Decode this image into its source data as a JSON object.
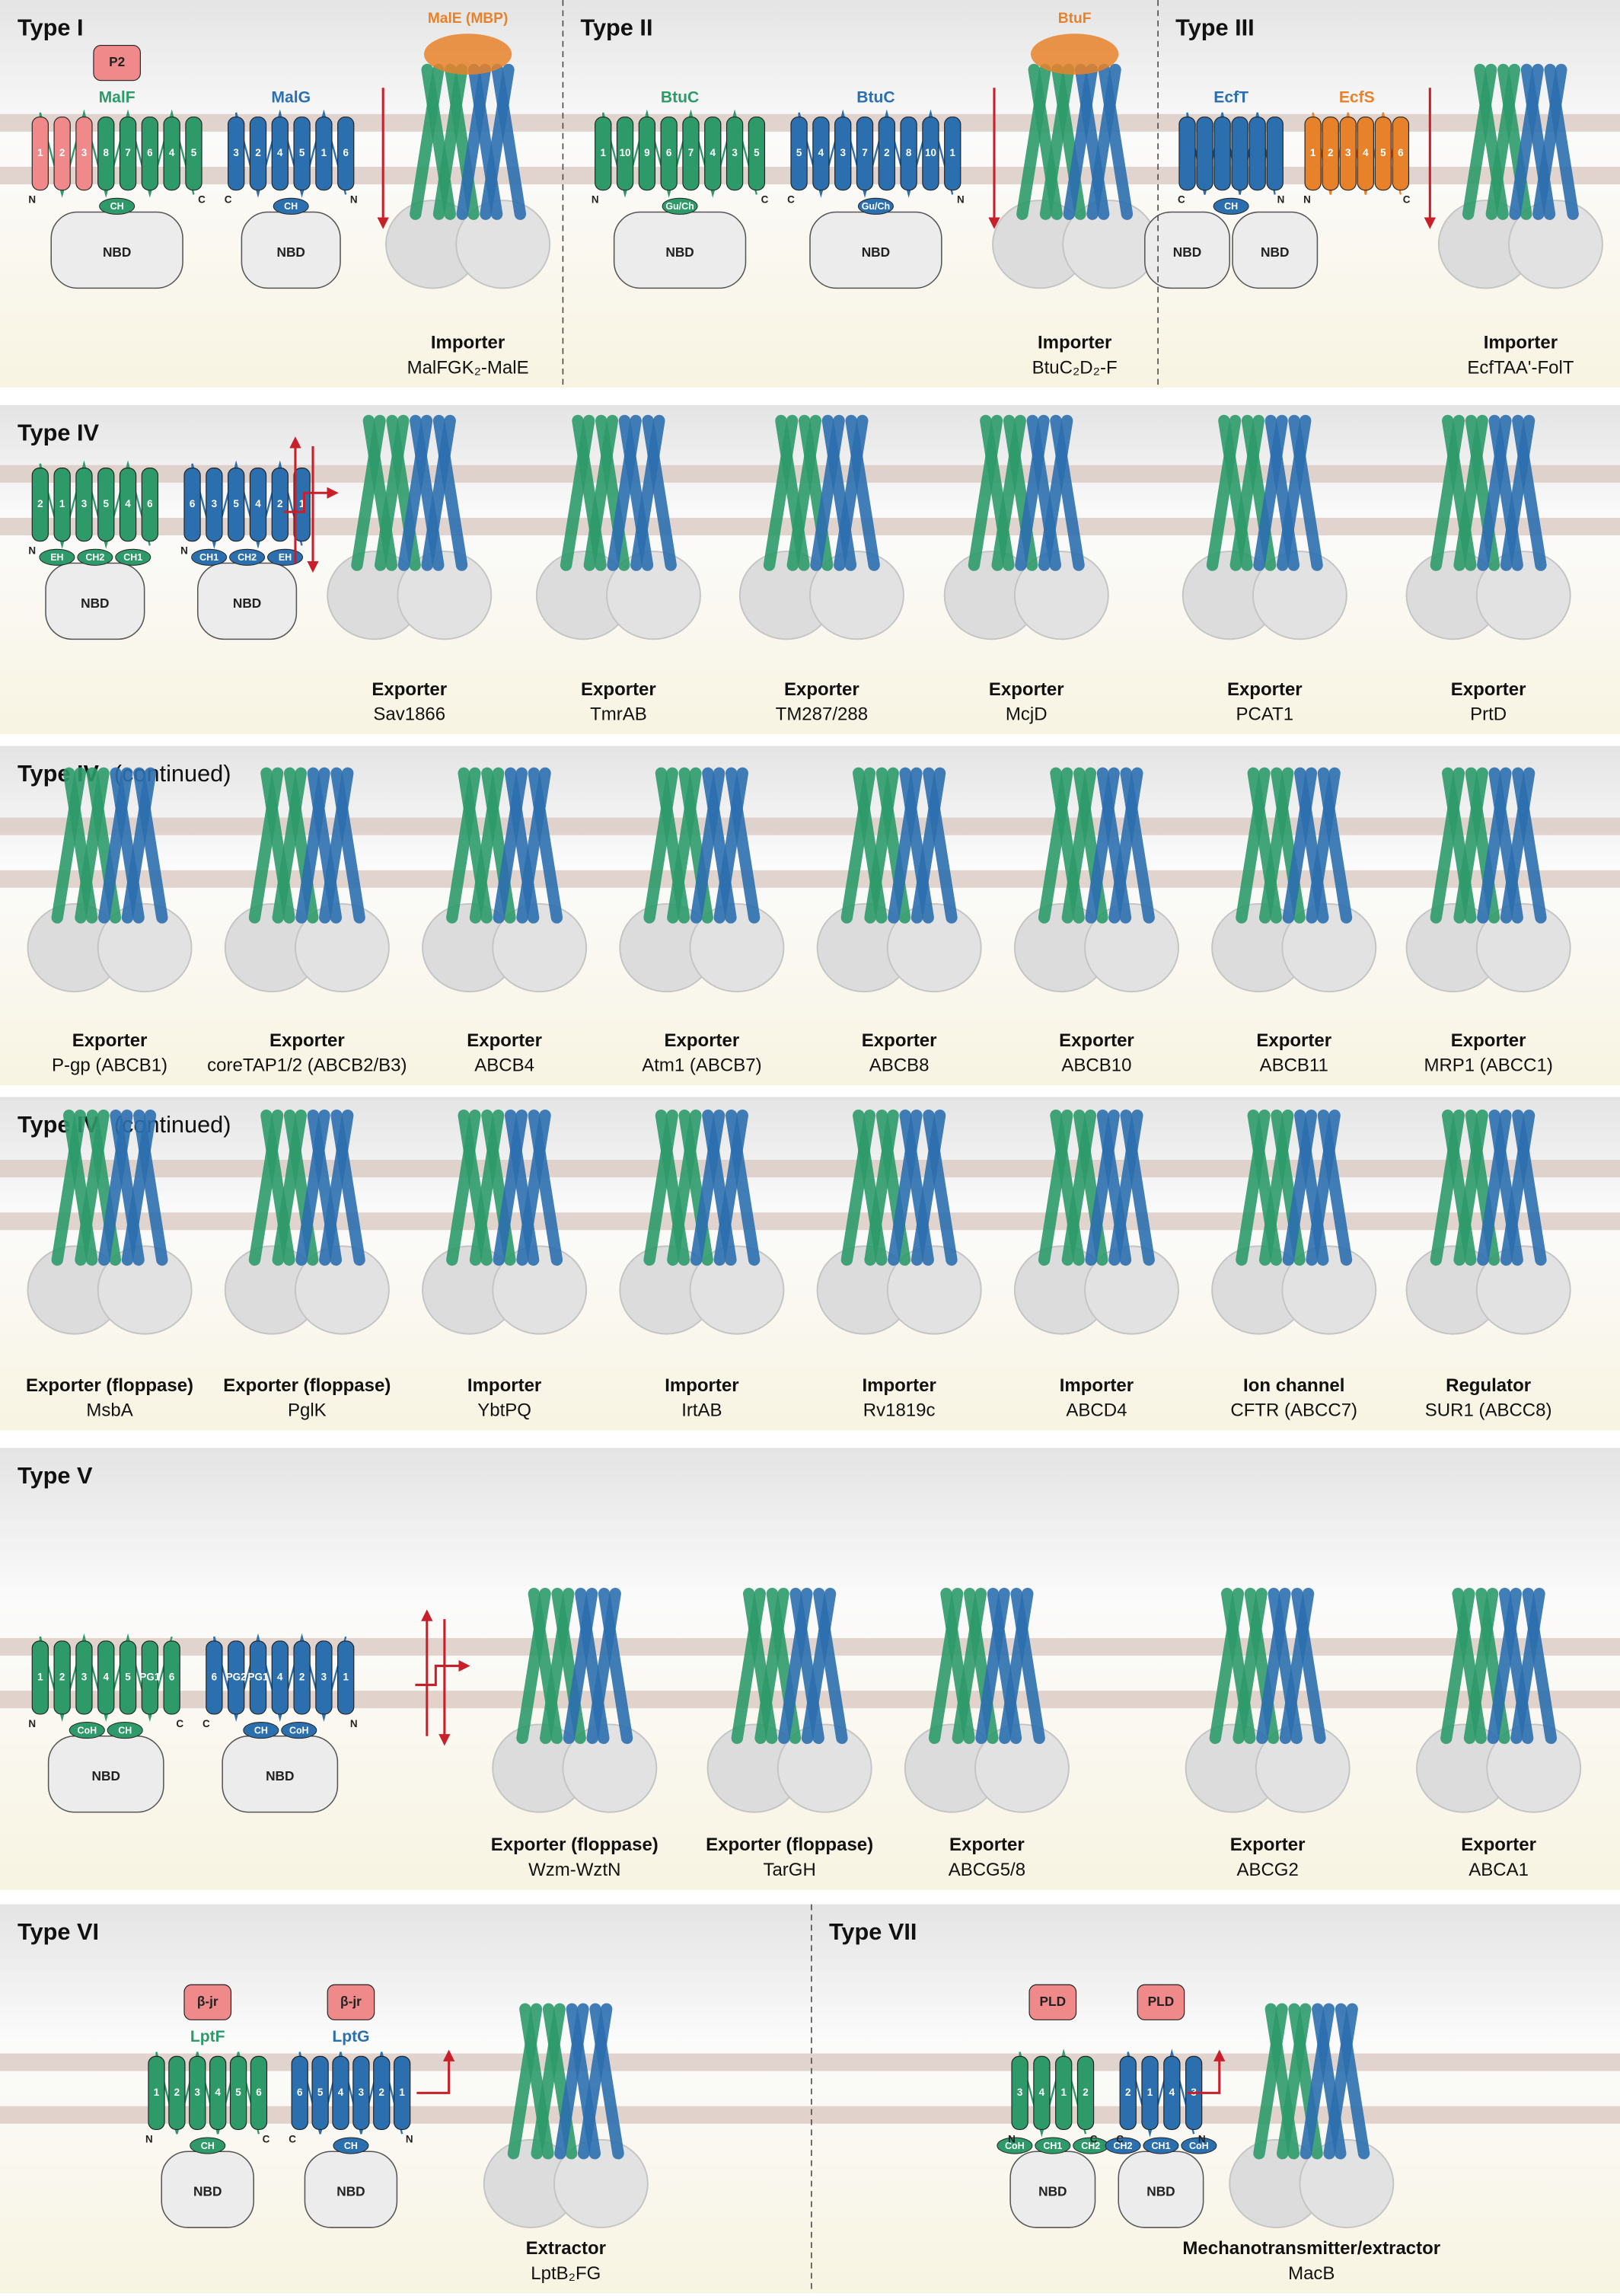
{
  "panels": [
    {
      "title": "Type I",
      "topology": {
        "units": [
          {
            "name": "MalF",
            "color": "#2e9a6a",
            "top": "P2",
            "segments": [
              {
                "color": "#f08a8a",
                "helices": [
                  "1",
                  "2",
                  "3"
                ]
              },
              {
                "color": "#2e9a6a",
                "helices": [
                  "8",
                  "7",
                  "6",
                  "4",
                  "5"
                ]
              }
            ],
            "caps": [
              "CH"
            ],
            "domains": [
              "NBD"
            ],
            "termini": [
              "N",
              "C"
            ]
          },
          {
            "name": "MalG",
            "color": "#2c6fae",
            "segments": [
              {
                "color": "#2c6fae",
                "helices": [
                  "3",
                  "2",
                  "4",
                  "5",
                  "1",
                  "6"
                ]
              }
            ],
            "caps": [
              "CH"
            ],
            "domains": [
              "NBD"
            ],
            "termini": [
              "C",
              "N"
            ]
          }
        ]
      },
      "captions": [
        {
          "role": "Importer",
          "name": "MalFGK₂-MalE",
          "ligand": "MalE (MBP)"
        }
      ]
    },
    {
      "title": "Type II",
      "topology": {
        "units": [
          {
            "name": "BtuC",
            "color": "#2e9a6a",
            "segments": [
              {
                "color": "#2e9a6a",
                "helices": [
                  "1",
                  "10",
                  "9",
                  "6",
                  "7",
                  "4",
                  "3",
                  "5"
                ]
              }
            ],
            "caps": [
              "Gu/Ch"
            ],
            "domains": [
              "NBD"
            ],
            "termini": [
              "N",
              "C"
            ]
          },
          {
            "name": "BtuC",
            "color": "#2c6fae",
            "segments": [
              {
                "color": "#2c6fae",
                "helices": [
                  "5",
                  "4",
                  "3",
                  "7",
                  "2",
                  "8",
                  "10",
                  "1"
                ]
              }
            ],
            "caps": [
              "Gu/Ch"
            ],
            "domains": [
              "NBD"
            ],
            "termini": [
              "C",
              "N"
            ]
          }
        ]
      },
      "captions": [
        {
          "role": "Importer",
          "name": "BtuC₂D₂-F",
          "ligand": "BtuF"
        }
      ]
    },
    {
      "title": "Type III",
      "topology": {
        "units": [
          {
            "name": "EcfT",
            "color": "#2c6fae",
            "caps": [
              "CH"
            ],
            "domains": [
              "NBD",
              "NBD"
            ],
            "termini": [
              "C",
              "N"
            ]
          },
          {
            "name": "EcfS",
            "color": "#e8822a",
            "segments": [
              {
                "color": "#e8822a",
                "helices": [
                  "1",
                  "2",
                  "3",
                  "4",
                  "5",
                  "6"
                ]
              }
            ],
            "termini": [
              "N",
              "C"
            ]
          }
        ]
      },
      "captions": [
        {
          "role": "Importer",
          "name": "EcfTAA'-FolT"
        }
      ]
    },
    {
      "title": "Type IV",
      "topology": {
        "units": [
          {
            "color": "#2e9a6a",
            "segments": [
              {
                "color": "#2e9a6a",
                "helices": [
                  "2",
                  "1",
                  "3",
                  "5",
                  "4",
                  "6"
                ]
              }
            ],
            "caps": [
              "EH",
              "CH2",
              "CH1"
            ],
            "domains": [
              "NBD"
            ],
            "termini": [
              "N"
            ]
          },
          {
            "color": "#2c6fae",
            "segments": [
              {
                "color": "#2c6fae",
                "helices": [
                  "6",
                  "3",
                  "5",
                  "4",
                  "2",
                  "1"
                ]
              }
            ],
            "caps": [
              "CH1",
              "CH2",
              "EH"
            ],
            "domains": [
              "NBD"
            ],
            "termini": [
              "N"
            ]
          }
        ]
      },
      "captions": [
        {
          "role": "Exporter",
          "name": "Sav1866"
        },
        {
          "role": "Exporter",
          "name": "TmrAB"
        },
        {
          "role": "Exporter",
          "name": "TM287/288"
        },
        {
          "role": "Exporter",
          "name": "McjD"
        },
        {
          "role": "Exporter",
          "name": "PCAT1"
        },
        {
          "role": "Exporter",
          "name": "PrtD"
        }
      ]
    },
    {
      "title": "Type IV",
      "subtitle": "(continued)",
      "captions": [
        {
          "role": "Exporter",
          "name": "P-gp (ABCB1)"
        },
        {
          "role": "Exporter",
          "name": "coreTAP1/2 (ABCB2/B3)"
        },
        {
          "role": "Exporter",
          "name": "ABCB4"
        },
        {
          "role": "Exporter",
          "name": "Atm1 (ABCB7)"
        },
        {
          "role": "Exporter",
          "name": "ABCB8"
        },
        {
          "role": "Exporter",
          "name": "ABCB10"
        },
        {
          "role": "Exporter",
          "name": "ABCB11"
        },
        {
          "role": "Exporter",
          "name": "MRP1 (ABCC1)"
        }
      ]
    },
    {
      "title": "Type IV",
      "subtitle": "(continued)",
      "captions": [
        {
          "role": "Exporter (floppase)",
          "name": "MsbA"
        },
        {
          "role": "Exporter (floppase)",
          "name": "PglK"
        },
        {
          "role": "Importer",
          "name": "YbtPQ"
        },
        {
          "role": "Importer",
          "name": "IrtAB"
        },
        {
          "role": "Importer",
          "name": "Rv1819c"
        },
        {
          "role": "Importer",
          "name": "ABCD4"
        },
        {
          "role": "Ion channel",
          "name": "CFTR (ABCC7)"
        },
        {
          "role": "Regulator",
          "name": "SUR1 (ABCC8)"
        }
      ]
    },
    {
      "title": "Type V",
      "topology": {
        "units": [
          {
            "color": "#2e9a6a",
            "segments": [
              {
                "color": "#2e9a6a",
                "helices": [
                  "1",
                  "2",
                  "3",
                  "4",
                  "5",
                  "PG1",
                  "6"
                ]
              }
            ],
            "caps": [
              "CoH",
              "CH"
            ],
            "domains": [
              "NBD"
            ],
            "termini": [
              "N",
              "C"
            ]
          },
          {
            "color": "#2c6fae",
            "segments": [
              {
                "color": "#2c6fae",
                "helices": [
                  "6",
                  "PG2",
                  "PG1",
                  "4",
                  "2",
                  "3",
                  "1"
                ]
              }
            ],
            "caps": [
              "CH",
              "CoH"
            ],
            "domains": [
              "NBD"
            ],
            "termini": [
              "C",
              "N"
            ]
          }
        ]
      },
      "captions": [
        {
          "role": "Exporter (floppase)",
          "name": "Wzm-WztN"
        },
        {
          "role": "Exporter (floppase)",
          "name": "TarGH"
        },
        {
          "role": "Exporter",
          "name": "ABCG5/8"
        },
        {
          "role": "Exporter",
          "name": "ABCG2"
        },
        {
          "role": "Exporter",
          "name": "ABCA1"
        }
      ]
    },
    {
      "title": "Type VI",
      "topology": {
        "units": [
          {
            "name": "LptF",
            "color": "#2e9a6a",
            "top": "β-jr",
            "segments": [
              {
                "color": "#2e9a6a",
                "helices": [
                  "1",
                  "2",
                  "3",
                  "4",
                  "5",
                  "6"
                ]
              }
            ],
            "caps": [
              "CH"
            ],
            "domains": [
              "NBD"
            ],
            "termini": [
              "N",
              "C"
            ]
          },
          {
            "name": "LptG",
            "color": "#2c6fae",
            "top": "β-jr",
            "segments": [
              {
                "color": "#2c6fae",
                "helices": [
                  "6",
                  "5",
                  "4",
                  "3",
                  "2",
                  "1"
                ]
              }
            ],
            "caps": [
              "CH"
            ],
            "domains": [
              "NBD"
            ],
            "termini": [
              "C",
              "N"
            ]
          }
        ]
      },
      "captions": [
        {
          "role": "Extractor",
          "name": "LptB₂FG"
        }
      ]
    },
    {
      "title": "Type VII",
      "topology": {
        "units": [
          {
            "color": "#2e9a6a",
            "top": "PLD",
            "segments": [
              {
                "color": "#2e9a6a",
                "helices": [
                  "3",
                  "4",
                  "1",
                  "2"
                ]
              }
            ],
            "caps": [
              "CoH",
              "CH1",
              "CH2"
            ],
            "domains": [
              "NBD"
            ],
            "termini": [
              "N",
              "C"
            ]
          },
          {
            "color": "#2c6fae",
            "top": "PLD",
            "segments": [
              {
                "color": "#2c6fae",
                "helices": [
                  "2",
                  "1",
                  "4",
                  "3"
                ]
              }
            ],
            "caps": [
              "CH2",
              "CH1",
              "CoH"
            ],
            "domains": [
              "NBD"
            ],
            "termini": [
              "C",
              "N"
            ]
          }
        ]
      },
      "captions": [
        {
          "role": "Mechanotransmitter/extractor",
          "name": "MacB"
        }
      ]
    }
  ]
}
